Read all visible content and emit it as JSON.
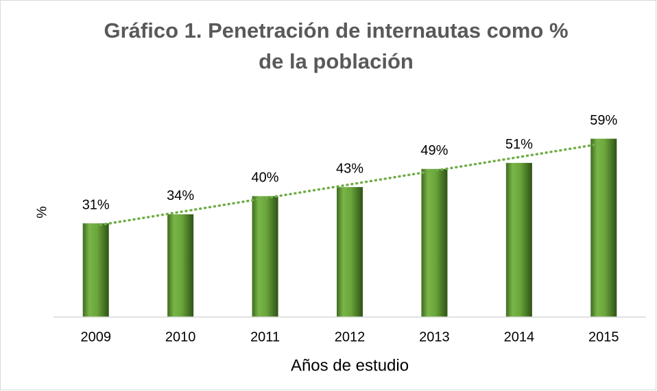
{
  "chart_data": {
    "type": "bar",
    "title": "Gráfico 1. Penetración de internautas como % de la población",
    "categories": [
      "2009",
      "2010",
      "2011",
      "2012",
      "2013",
      "2014",
      "2015"
    ],
    "values": [
      31,
      34,
      40,
      43,
      49,
      51,
      59
    ],
    "value_labels": [
      "31%",
      "34%",
      "40%",
      "43%",
      "49%",
      "51%",
      "59%"
    ],
    "color": "#6aa53a",
    "ylim": [
      0,
      70
    ],
    "x_label": "Años de estudio",
    "y_label": "%",
    "trendline": "linear",
    "trendline_color": "#70ad47"
  }
}
